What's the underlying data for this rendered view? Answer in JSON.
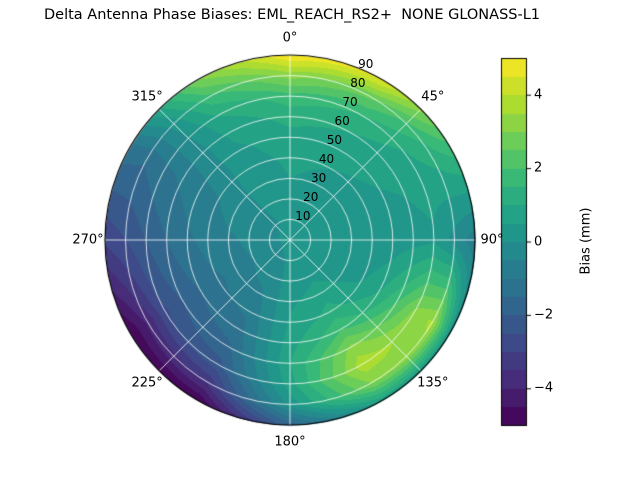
{
  "chart_data": {
    "type": "heatmap",
    "projection": "polar",
    "title": "Delta Antenna Phase Biases: EML_REACH_RS2+  NONE GLONASS-L1",
    "units": "mm",
    "theta_zero": "top",
    "theta_direction": "clockwise",
    "r_max": 90,
    "theta_ticks": [
      {
        "deg": 0,
        "label": "0°"
      },
      {
        "deg": 45,
        "label": "45°"
      },
      {
        "deg": 90,
        "label": "90°"
      },
      {
        "deg": 135,
        "label": "135°"
      },
      {
        "deg": 180,
        "label": "180°"
      },
      {
        "deg": 225,
        "label": "225°"
      },
      {
        "deg": 270,
        "label": "270°"
      },
      {
        "deg": 315,
        "label": "315°"
      }
    ],
    "r_ticks": {
      "values": [
        10,
        20,
        30,
        40,
        50,
        60,
        70,
        80,
        90
      ],
      "labels": [
        "10",
        "20",
        "30",
        "40",
        "50",
        "60",
        "70",
        "80",
        "90"
      ],
      "label_angle_deg": 22.5
    },
    "colorbar": {
      "label": "Bias (mm)",
      "vmin": -5,
      "vmax": 5,
      "level_step": 0.5,
      "colormap": "viridis",
      "ticks": [
        {
          "value": -4,
          "label": "−4"
        },
        {
          "value": -2,
          "label": "−2"
        },
        {
          "value": 0,
          "label": "0"
        },
        {
          "value": 2,
          "label": "2"
        },
        {
          "value": 4,
          "label": "4"
        }
      ]
    },
    "colormap_stops": [
      "#440154",
      "#482878",
      "#3e4989",
      "#31688e",
      "#26828e",
      "#1f9e89",
      "#35b779",
      "#6ece58",
      "#b5de2b",
      "#fde725"
    ],
    "grid_line_color": "#ffffff",
    "outline_color": "#000000",
    "azimuth_deg": [
      0,
      30,
      60,
      90,
      120,
      150,
      180,
      210,
      240,
      270,
      300,
      330
    ],
    "radius": [
      0,
      10,
      20,
      30,
      40,
      50,
      60,
      70,
      80,
      90
    ],
    "values": [
      [
        0.2,
        0.3,
        0.4,
        0.5,
        0.6,
        0.8,
        1.2,
        1.8,
        3.2,
        5.0
      ],
      [
        0.2,
        0.2,
        0.3,
        0.4,
        0.5,
        0.7,
        1.0,
        1.5,
        2.6,
        4.6
      ],
      [
        0.2,
        0.2,
        0.2,
        0.3,
        0.4,
        0.5,
        0.6,
        0.8,
        1.2,
        1.8
      ],
      [
        0.2,
        0.1,
        0.1,
        0.1,
        0.1,
        0.2,
        0.3,
        0.4,
        -0.2,
        -0.8
      ],
      [
        0.2,
        0.1,
        0.2,
        0.3,
        0.5,
        1.0,
        2.0,
        3.2,
        3.6,
        0.2
      ],
      [
        0.2,
        0.2,
        0.4,
        0.8,
        1.2,
        2.0,
        3.2,
        3.8,
        3.0,
        0.6
      ],
      [
        0.2,
        0.1,
        0.2,
        0.4,
        0.6,
        0.8,
        1.0,
        0.8,
        0.2,
        -1.8
      ],
      [
        0.2,
        -0.1,
        -0.3,
        -0.6,
        -0.9,
        -1.2,
        -1.6,
        -2.2,
        -3.4,
        -5.0
      ],
      [
        0.2,
        -0.2,
        -0.5,
        -0.8,
        -1.1,
        -1.5,
        -2.0,
        -2.6,
        -3.9,
        -5.0
      ],
      [
        0.2,
        -0.2,
        -0.4,
        -0.6,
        -0.8,
        -1.1,
        -1.5,
        -2.0,
        -2.5,
        -2.9
      ],
      [
        0.2,
        -0.1,
        -0.2,
        -0.3,
        -0.5,
        -0.7,
        -0.9,
        -1.1,
        -1.4,
        -1.2
      ],
      [
        0.2,
        0.0,
        0.1,
        0.2,
        0.3,
        0.4,
        0.6,
        1.0,
        1.8,
        3.0
      ]
    ]
  }
}
